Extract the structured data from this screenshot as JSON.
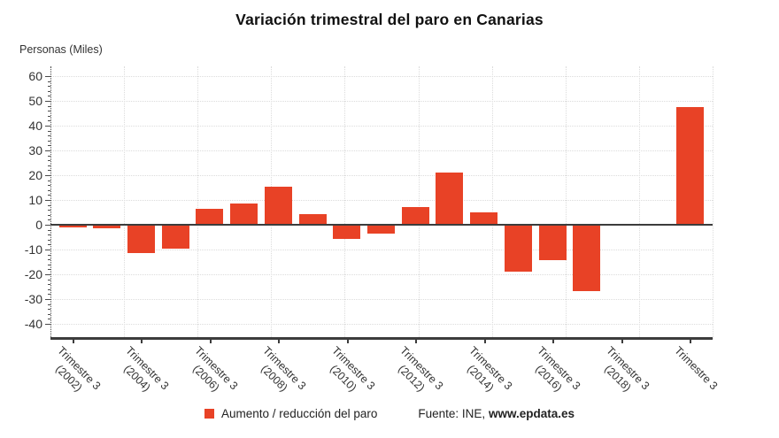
{
  "header": {
    "title": "Variación trimestral del paro en Canarias",
    "units_label": "Personas (Miles)"
  },
  "legend": {
    "series_label": "Aumento / reducción del paro",
    "source_label": "Fuente: INE,",
    "source_site": "www.epdata.es"
  },
  "colors": {
    "bar": "#e84226",
    "axis": "#3c3c3c",
    "grid": "#dcdcdc",
    "title_text": "#111111",
    "label_text": "#333333"
  },
  "chart_data": {
    "type": "bar",
    "title": "Variación trimestral del paro en Canarias",
    "ylabel": "Personas (Miles)",
    "series_name": "Aumento / reducción del paro",
    "source": "Fuente: INE, www.epdata.es",
    "bar_count": 19,
    "values": [
      -1.0,
      -1.5,
      -11.3,
      -9.5,
      6.3,
      8.7,
      15.5,
      4.4,
      -5.7,
      -3.7,
      7.2,
      21.0,
      5.0,
      -18.9,
      -14.4,
      -26.9,
      0.0,
      0.5,
      47.6
    ],
    "yticks": [
      60,
      50,
      40,
      30,
      20,
      10,
      0,
      -10,
      -20,
      -30,
      -40
    ],
    "ylim": [
      -46,
      64
    ],
    "grid": true,
    "legend_position": "bottom",
    "x_ticks": [
      {
        "bar_index": 0,
        "line1": "Trimestre 3",
        "line2": "(2002)"
      },
      {
        "bar_index": 2,
        "line1": "Trimestre 3",
        "line2": "(2004)"
      },
      {
        "bar_index": 4,
        "line1": "Trimestre 3",
        "line2": "(2006)"
      },
      {
        "bar_index": 6,
        "line1": "Trimestre 3",
        "line2": "(2008)"
      },
      {
        "bar_index": 8,
        "line1": "Trimestre 3",
        "line2": "(2010)"
      },
      {
        "bar_index": 10,
        "line1": "Trimestre 3",
        "line2": "(2012)"
      },
      {
        "bar_index": 12,
        "line1": "Trimestre 3",
        "line2": "(2014)"
      },
      {
        "bar_index": 14,
        "line1": "Trimestre 3",
        "line2": "(2016)"
      },
      {
        "bar_index": 16,
        "line1": "Trimestre 3",
        "line2": "(2018)"
      },
      {
        "bar_index": 18,
        "line1": "Trimestre 3",
        "line2": ""
      }
    ]
  }
}
